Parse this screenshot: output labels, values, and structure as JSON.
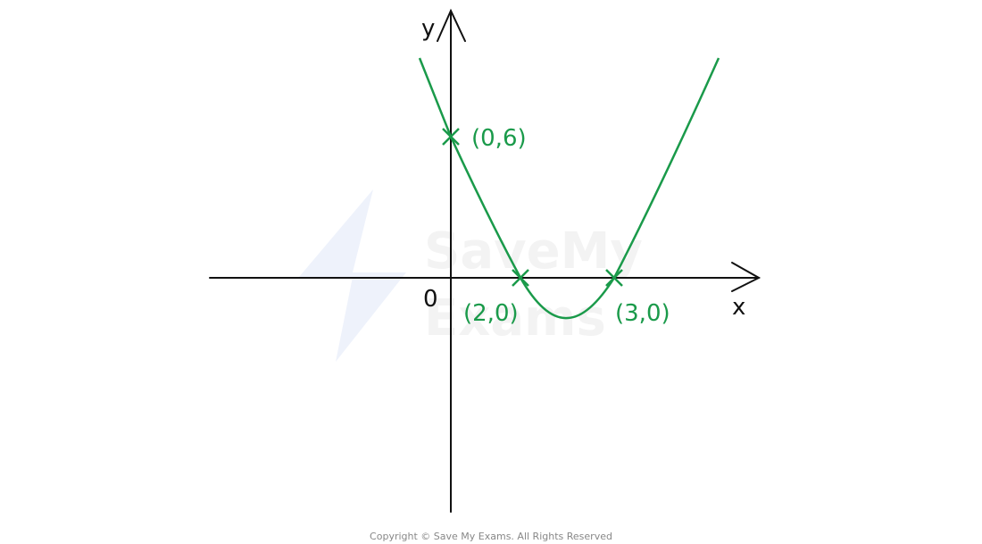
{
  "axes": {
    "x_label": "x",
    "y_label": "y",
    "origin": "0"
  },
  "points": [
    {
      "label": "(0,6)"
    },
    {
      "label": "(2,0)"
    },
    {
      "label": "(3,0)"
    }
  ],
  "watermark": [
    "SaveMy",
    "Exams"
  ],
  "footer": "Copyright © Save My Exams. All Rights Reserved"
}
